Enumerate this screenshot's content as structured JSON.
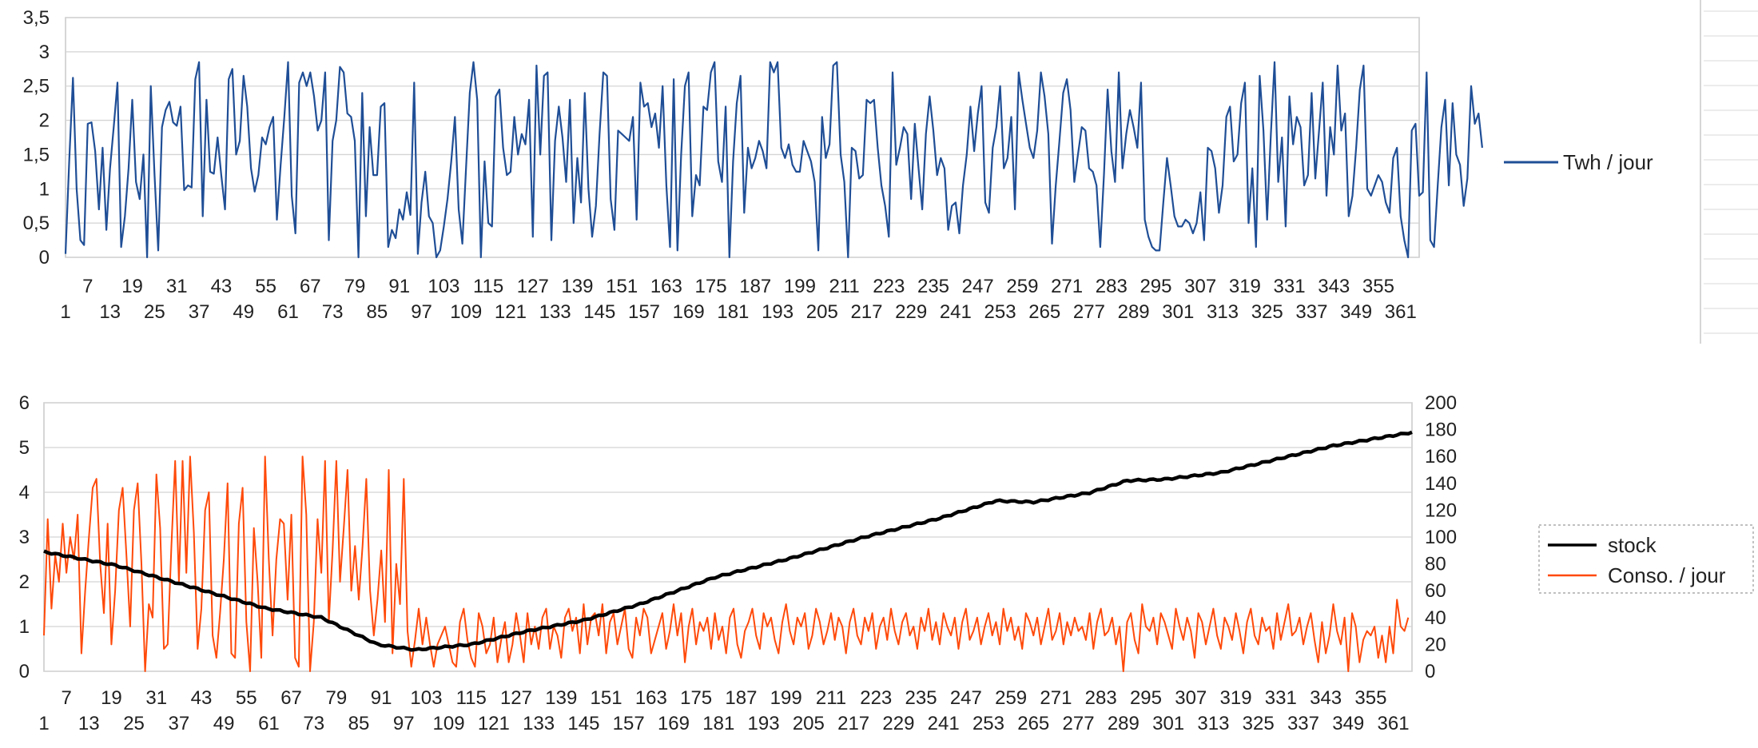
{
  "chart_data": [
    {
      "type": "line",
      "title": "",
      "xlabel": "",
      "ylabel": "",
      "x_start": 1,
      "x_end": 366,
      "ylim": [
        0,
        3.5
      ],
      "y_ticks": [
        "0",
        "0,5",
        "1",
        "1,5",
        "2",
        "2,5",
        "3",
        "3,5"
      ],
      "x_ticks_row1": [
        "7",
        "19",
        "31",
        "43",
        "55",
        "67",
        "79",
        "91",
        "103",
        "115",
        "127",
        "139",
        "151",
        "163",
        "175",
        "187",
        "199",
        "211",
        "223",
        "235",
        "247",
        "259",
        "271",
        "283",
        "295",
        "307",
        "319",
        "331",
        "343",
        "355"
      ],
      "x_ticks_row2": [
        "1",
        "13",
        "25",
        "37",
        "49",
        "61",
        "73",
        "85",
        "97",
        "109",
        "121",
        "133",
        "145",
        "157",
        "169",
        "181",
        "193",
        "205",
        "217",
        "229",
        "241",
        "253",
        "265",
        "277",
        "289",
        "301",
        "313",
        "325",
        "337",
        "349",
        "361"
      ],
      "grid": true,
      "legend_position": "right",
      "series": [
        {
          "name": "Twh / jour",
          "color": "#1f4e96",
          "values": [
            0.05,
            1.4,
            2.62,
            1.0,
            0.25,
            0.18,
            1.95,
            1.97,
            1.55,
            0.7,
            1.6,
            0.4,
            1.3,
            1.9,
            2.55,
            0.15,
            0.6,
            1.3,
            2.3,
            1.1,
            0.85,
            1.5,
            0.0,
            2.5,
            1.2,
            0.1,
            1.9,
            2.15,
            2.27,
            1.97,
            1.92,
            2.2,
            0.98,
            1.05,
            1.02,
            2.6,
            2.85,
            0.6,
            2.3,
            1.25,
            1.22,
            1.75,
            1.2,
            0.7,
            2.6,
            2.75,
            1.5,
            1.7,
            2.65,
            2.2,
            1.3,
            0.96,
            1.2,
            1.75,
            1.65,
            1.9,
            2.05,
            0.55,
            1.35,
            2.05,
            2.85,
            0.9,
            0.35,
            2.55,
            2.7,
            2.5,
            2.7,
            2.35,
            1.85,
            2.0,
            2.7,
            0.25,
            1.7,
            2.0,
            2.78,
            2.7,
            2.1,
            2.05,
            1.7,
            0.0,
            2.4,
            0.6,
            1.9,
            1.2,
            1.2,
            2.2,
            2.25,
            0.15,
            0.4,
            0.28,
            0.7,
            0.55,
            0.95,
            0.62,
            2.55,
            0.05,
            0.8,
            1.25,
            0.6,
            0.5,
            0.0,
            0.1,
            0.45,
            0.85,
            1.4,
            2.05,
            0.7,
            0.2,
            1.3,
            2.4,
            2.85,
            2.3,
            0.0,
            1.4,
            0.5,
            0.45,
            2.35,
            2.45,
            1.6,
            1.2,
            1.25,
            2.05,
            1.5,
            1.8,
            1.65,
            2.3,
            0.3,
            2.8,
            1.5,
            2.65,
            2.7,
            0.25,
            1.7,
            2.2,
            1.75,
            1.1,
            2.3,
            0.5,
            1.45,
            0.8,
            2.4,
            1.0,
            0.3,
            0.75,
            1.8,
            2.7,
            2.65,
            0.85,
            0.4,
            1.85,
            1.8,
            1.75,
            1.7,
            2.05,
            0.55,
            2.55,
            2.2,
            2.25,
            1.9,
            2.1,
            1.6,
            2.5,
            1.05,
            0.15,
            2.6,
            0.1,
            1.5,
            2.5,
            2.7,
            0.6,
            1.2,
            1.05,
            2.2,
            2.15,
            2.7,
            2.85,
            1.4,
            1.1,
            2.2,
            0.0,
            1.4,
            2.25,
            2.65,
            0.65,
            1.6,
            1.3,
            1.45,
            1.7,
            1.55,
            1.3,
            2.85,
            2.7,
            2.85,
            1.6,
            1.45,
            1.65,
            1.35,
            1.25,
            1.25,
            1.7,
            1.55,
            1.4,
            1.1,
            0.1,
            2.05,
            1.45,
            1.65,
            2.8,
            2.85,
            1.5,
            1.1,
            0.0,
            1.6,
            1.55,
            1.15,
            1.2,
            2.3,
            2.25,
            2.3,
            1.6,
            1.05,
            0.75,
            0.3,
            2.7,
            1.35,
            1.6,
            1.9,
            1.8,
            0.85,
            1.95,
            1.3,
            0.7,
            1.8,
            2.35,
            1.85,
            1.2,
            1.45,
            1.3,
            0.4,
            0.75,
            0.8,
            0.35,
            1.05,
            1.5,
            2.2,
            1.55,
            2.1,
            2.5,
            0.8,
            0.65,
            1.6,
            1.9,
            2.5,
            1.3,
            1.45,
            2.05,
            0.7,
            2.7,
            2.3,
            1.95,
            1.6,
            1.45,
            1.85,
            2.7,
            2.35,
            1.8,
            0.2,
            1.05,
            1.7,
            2.4,
            2.6,
            2.15,
            1.1,
            1.5,
            1.9,
            1.85,
            1.3,
            1.25,
            1.05,
            0.15,
            1.2,
            2.45,
            1.55,
            1.1,
            2.7,
            1.3,
            1.8,
            2.15,
            1.9,
            1.6,
            2.55,
            0.55,
            0.3,
            0.15,
            0.1,
            0.1,
            0.8,
            1.45,
            1.05,
            0.6,
            0.45,
            0.45,
            0.55,
            0.5,
            0.35,
            0.5,
            0.95,
            0.25,
            1.6,
            1.55,
            1.3,
            0.65,
            1.05,
            2.05,
            2.2,
            1.4,
            1.5,
            2.25,
            2.55,
            0.5,
            1.3,
            0.15,
            2.65,
            1.85,
            0.55,
            1.8,
            2.85,
            1.1,
            1.75,
            0.45,
            2.35,
            1.65,
            2.05,
            1.9,
            1.05,
            1.2,
            2.4,
            1.15,
            1.85,
            2.55,
            0.9,
            1.9,
            1.5,
            2.8,
            1.85,
            2.1,
            0.6,
            0.9,
            1.6,
            2.45,
            2.8,
            1.0,
            0.9,
            1.05,
            1.2,
            1.1,
            0.8,
            0.65,
            1.45,
            1.6,
            0.6,
            0.25,
            0.0,
            1.85,
            1.95,
            0.9,
            0.95,
            2.7,
            0.25,
            0.15,
            1.05,
            1.9,
            2.3,
            1.05,
            2.25,
            1.5,
            1.35,
            0.75,
            1.15,
            2.5,
            1.95,
            2.1,
            1.6
          ]
        }
      ]
    },
    {
      "type": "line",
      "title": "",
      "xlabel": "",
      "ylabel": "",
      "x_start": 1,
      "x_end": 366,
      "ylim_left": [
        0,
        6
      ],
      "ylim_right": [
        0,
        200
      ],
      "y_ticks_left": [
        "0",
        "1",
        "2",
        "3",
        "4",
        "5",
        "6"
      ],
      "y_ticks_right": [
        "0",
        "20",
        "40",
        "60",
        "80",
        "100",
        "120",
        "140",
        "160",
        "180",
        "200"
      ],
      "x_ticks_row1": [
        "7",
        "19",
        "31",
        "43",
        "55",
        "67",
        "79",
        "91",
        "103",
        "115",
        "127",
        "139",
        "151",
        "163",
        "175",
        "187",
        "199",
        "211",
        "223",
        "235",
        "247",
        "259",
        "271",
        "283",
        "295",
        "307",
        "319",
        "331",
        "343",
        "355"
      ],
      "x_ticks_row2": [
        "1",
        "13",
        "25",
        "37",
        "49",
        "61",
        "73",
        "85",
        "97",
        "109",
        "121",
        "133",
        "145",
        "157",
        "169",
        "181",
        "193",
        "205",
        "217",
        "229",
        "241",
        "253",
        "265",
        "277",
        "289",
        "301",
        "313",
        "325",
        "337",
        "349",
        "361"
      ],
      "grid": true,
      "legend_position": "right",
      "series": [
        {
          "name": "stock",
          "axis": "right",
          "color": "#000000",
          "keypoints": [
            [
              1,
              89
            ],
            [
              20,
              79
            ],
            [
              40,
              63
            ],
            [
              60,
              47
            ],
            [
              75,
              40
            ],
            [
              90,
              20
            ],
            [
              100,
              16
            ],
            [
              115,
              20
            ],
            [
              130,
              30
            ],
            [
              145,
              38
            ],
            [
              160,
              50
            ],
            [
              180,
              70
            ],
            [
              200,
              84
            ],
            [
              220,
              100
            ],
            [
              240,
              114
            ],
            [
              255,
              127
            ],
            [
              265,
              126
            ],
            [
              280,
              133
            ],
            [
              290,
              142
            ],
            [
              300,
              143
            ],
            [
              315,
              148
            ],
            [
              330,
              158
            ],
            [
              345,
              168
            ],
            [
              366,
              178
            ]
          ]
        },
        {
          "name": "Conso. / jour",
          "axis": "left",
          "color": "#ff4a0a",
          "values": [
            0.8,
            3.4,
            1.4,
            2.6,
            2.0,
            3.3,
            2.2,
            3.0,
            2.5,
            3.5,
            0.4,
            1.8,
            3.0,
            4.1,
            4.3,
            2.4,
            1.3,
            3.3,
            0.6,
            1.8,
            3.6,
            4.1,
            2.6,
            1.0,
            3.6,
            4.2,
            2.4,
            0.0,
            1.5,
            1.2,
            4.4,
            3.2,
            0.5,
            0.6,
            2.8,
            4.7,
            2.0,
            4.7,
            2.2,
            4.8,
            3.1,
            0.5,
            1.4,
            3.6,
            4.0,
            0.8,
            0.3,
            1.3,
            2.5,
            4.2,
            0.4,
            0.3,
            3.3,
            4.1,
            1.1,
            0.0,
            3.2,
            2.0,
            0.3,
            4.8,
            2.5,
            0.8,
            2.5,
            3.4,
            3.3,
            1.6,
            3.5,
            0.3,
            0.1,
            4.8,
            3.5,
            0.0,
            1.1,
            3.4,
            2.2,
            4.7,
            1.1,
            2.7,
            4.7,
            2.0,
            3.2,
            4.5,
            1.8,
            2.8,
            1.6,
            2.8,
            4.3,
            1.8,
            0.8,
            1.6,
            2.7,
            1.1,
            4.5,
            0.4,
            2.4,
            1.5,
            4.3,
            0.9,
            0.1,
            0.7,
            1.4,
            0.6,
            1.2,
            0.6,
            0.1,
            0.6,
            0.8,
            1.0,
            0.6,
            0.2,
            0.1,
            1.1,
            1.4,
            0.7,
            0.3,
            0.1,
            1.3,
            1.0,
            0.4,
            0.6,
            1.2,
            0.2,
            0.7,
            1.1,
            0.2,
            0.6,
            1.3,
            0.8,
            0.2,
            1.3,
            0.6,
            1.0,
            0.5,
            1.2,
            1.4,
            0.5,
            1.0,
            0.8,
            0.3,
            1.2,
            1.4,
            0.9,
            1.2,
            0.4,
            1.5,
            0.6,
            1.2,
            1.3,
            0.8,
            1.5,
            0.4,
            1.1,
            1.3,
            0.6,
            1.0,
            1.4,
            0.5,
            0.3,
            1.2,
            0.8,
            1.4,
            1.2,
            0.4,
            0.7,
            1.0,
            1.3,
            0.5,
            0.9,
            1.5,
            0.8,
            1.3,
            0.2,
            1.0,
            1.4,
            0.6,
            1.1,
            0.9,
            1.2,
            0.5,
            1.3,
            0.7,
            1.0,
            0.4,
            1.2,
            1.4,
            0.6,
            0.3,
            0.9,
            1.1,
            1.4,
            0.8,
            0.5,
            1.3,
            1.0,
            1.2,
            0.7,
            0.4,
            1.1,
            1.5,
            0.9,
            0.6,
            1.2,
            1.0,
            1.3,
            0.5,
            0.8,
            1.4,
            1.1,
            0.6,
            0.9,
            1.3,
            0.7,
            1.2,
            1.0,
            0.4,
            1.1,
            1.4,
            0.8,
            0.6,
            1.2,
            0.9,
            1.3,
            0.5,
            1.0,
            1.2,
            0.7,
            1.4,
            0.9,
            0.6,
            1.1,
            1.3,
            0.8,
            1.0,
            0.5,
            1.2,
            0.9,
            1.4,
            0.7,
            1.1,
            0.6,
            1.3,
            1.0,
            0.8,
            1.2,
            0.5,
            1.1,
            1.4,
            0.7,
            0.9,
            1.2,
            0.6,
            1.0,
            1.3,
            0.8,
            1.1,
            0.6,
            1.4,
            0.9,
            1.2,
            0.7,
            1.0,
            0.5,
            1.3,
            1.1,
            0.8,
            1.2,
            0.6,
            1.0,
            1.4,
            0.7,
            0.9,
            1.3,
            0.6,
            1.1,
            0.8,
            1.2,
            0.9,
            1.0,
            0.7,
            1.3,
            0.5,
            1.1,
            1.4,
            0.8,
            0.9,
            1.2,
            0.6,
            1.0,
            0.0,
            1.1,
            1.3,
            0.7,
            0.4,
            1.5,
            1.0,
            0.9,
            1.2,
            0.6,
            1.3,
            1.1,
            0.8,
            0.5,
            1.4,
            1.0,
            0.7,
            1.2,
            0.9,
            0.3,
            1.3,
            1.1,
            0.6,
            1.0,
            1.4,
            0.8,
            0.5,
            1.2,
            1.0,
            0.7,
            1.3,
            0.9,
            0.4,
            1.1,
            1.4,
            0.8,
            0.6,
            1.2,
            0.9,
            1.0,
            0.5,
            1.3,
            0.7,
            1.1,
            1.5,
            0.8,
            0.9,
            1.2,
            0.6,
            1.0,
            1.3,
            0.7,
            0.2,
            1.1,
            0.4,
            0.8,
            1.5,
            0.9,
            0.6,
            1.2,
            0.0,
            1.3,
            1.0,
            0.2,
            0.7,
            0.9,
            0.8,
            1.0,
            0.3,
            0.8,
            0.2,
            1.0,
            0.4,
            1.6,
            1.0,
            0.9,
            1.2
          ]
        }
      ]
    }
  ],
  "legend1": {
    "label": "Twh / jour",
    "color": "#1f4e96"
  },
  "legend2": {
    "stock_label": "stock",
    "stock_color": "#000000",
    "conso_label": "Conso. / jour",
    "conso_color": "#ff4a0a"
  }
}
